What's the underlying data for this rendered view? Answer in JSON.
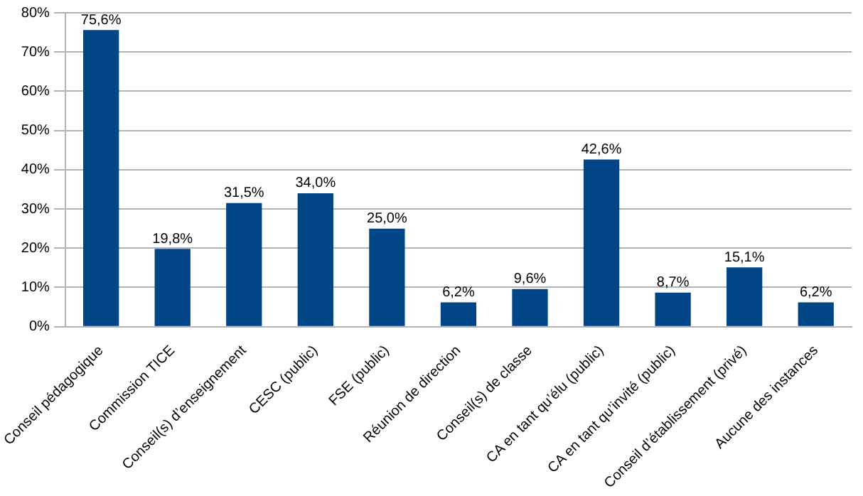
{
  "chart_data": {
    "type": "bar",
    "categories": [
      "Conseil pédagogique",
      "Commission TICE",
      "Conseil(s) d’enseignement",
      "CESC (public)",
      "FSE (public)",
      "Réunion de direction",
      "Conseil(s) de classe",
      "CA en tant qu’élu (public)",
      "CA en tant qu’invité (public)",
      "Conseil d’établissement (privé)",
      "Aucune des instances"
    ],
    "values": [
      75.6,
      19.8,
      31.5,
      34.0,
      25.0,
      6.2,
      9.6,
      42.6,
      8.7,
      15.1,
      6.2
    ],
    "value_labels": [
      "75,6%",
      "19,8%",
      "31,5%",
      "34,0%",
      "25,0%",
      "6,2%",
      "9,6%",
      "42,6%",
      "8,7%",
      "15,1%",
      "6,2%"
    ],
    "color": "#004586",
    "ylim": [
      0,
      80
    ],
    "yticks": [
      {
        "value": 0,
        "label": "0%"
      },
      {
        "value": 10,
        "label": "10%"
      },
      {
        "value": 20,
        "label": "20%"
      },
      {
        "value": 30,
        "label": "30%"
      },
      {
        "value": 40,
        "label": "40%"
      },
      {
        "value": 50,
        "label": "50%"
      },
      {
        "value": 60,
        "label": "60%"
      },
      {
        "value": 70,
        "label": "70%"
      },
      {
        "value": 80,
        "label": "80%"
      }
    ],
    "grid": "y"
  }
}
